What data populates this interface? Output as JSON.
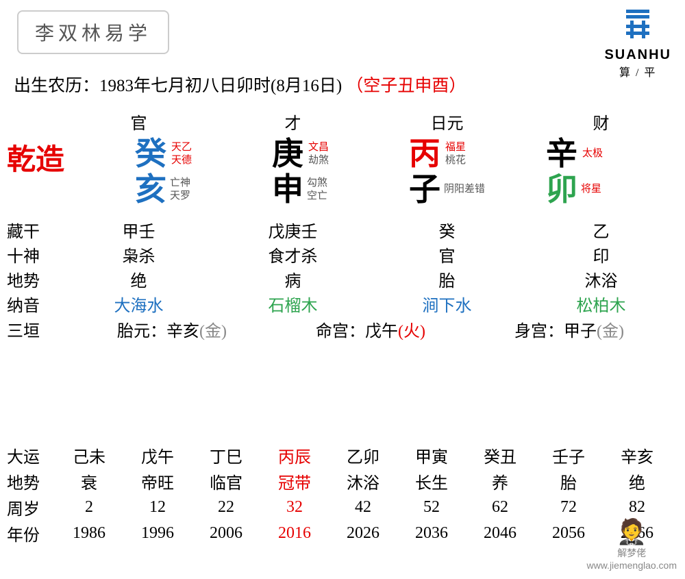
{
  "header": {
    "title": "李双林易学"
  },
  "logo": {
    "brand": "SUANHU",
    "sub": "算 / 平"
  },
  "birth": {
    "prefix": "出生农历：",
    "main": "1983年七月初八日卯时(8月16日)",
    "void": "（空子丑申酉）"
  },
  "topLabels": {
    "year": "官",
    "month": "才",
    "day": "日元",
    "hour": "财"
  },
  "qianzao": "乾造",
  "pillars": {
    "year": {
      "stem": "癸",
      "stemColor": "#1e70c0",
      "stemTags": [
        {
          "text": "天乙",
          "color": "#e60000"
        },
        {
          "text": "天德",
          "color": "#e60000"
        }
      ],
      "branch": "亥",
      "branchColor": "#1e70c0",
      "branchTags": [
        {
          "text": "亡神",
          "color": "#555555"
        },
        {
          "text": "天罗",
          "color": "#555555"
        }
      ]
    },
    "month": {
      "stem": "庚",
      "stemColor": "#000000",
      "stemTags": [
        {
          "text": "文昌",
          "color": "#e60000"
        },
        {
          "text": "劫煞",
          "color": "#555555"
        }
      ],
      "branch": "申",
      "branchColor": "#000000",
      "branchTags": [
        {
          "text": "勾煞",
          "color": "#555555"
        },
        {
          "text": "空亡",
          "color": "#555555"
        }
      ]
    },
    "day": {
      "stem": "丙",
      "stemColor": "#e60000",
      "stemTags": [
        {
          "text": "福星",
          "color": "#e60000"
        },
        {
          "text": "桃花",
          "color": "#555555"
        }
      ],
      "branch": "子",
      "branchColor": "#000000",
      "branchTags": [
        {
          "text": "阴阳差错",
          "color": "#555555"
        }
      ]
    },
    "hour": {
      "stem": "辛",
      "stemColor": "#000000",
      "stemTags": [
        {
          "text": "太极",
          "color": "#e60000"
        }
      ],
      "branch": "卯",
      "branchColor": "#2ea44f",
      "branchTags": [
        {
          "text": "将星",
          "color": "#e60000"
        }
      ]
    }
  },
  "details": {
    "canggan": {
      "label": "藏干",
      "year": "甲壬",
      "month": "戊庚壬",
      "day": "癸",
      "hour": "乙"
    },
    "shishen": {
      "label": "十神",
      "year": "枭杀",
      "month": "食才杀",
      "day": "官",
      "hour": "印"
    },
    "dishi": {
      "label": "地势",
      "year": "绝",
      "month": "病",
      "day": "胎",
      "hour": "沐浴"
    },
    "nayin": {
      "label": "纳音",
      "year": {
        "text": "大海水",
        "color": "#1e70c0"
      },
      "month": {
        "text": "石榴木",
        "color": "#2ea44f"
      },
      "day": {
        "text": "涧下水",
        "color": "#1e70c0"
      },
      "hour": {
        "text": "松柏木",
        "color": "#2ea44f"
      }
    }
  },
  "sanyuan": {
    "label": "三垣",
    "taiyuan": {
      "label": "胎元：",
      "value": "辛亥",
      "elem": "(金)",
      "elemColor": "#888888"
    },
    "minggong": {
      "label": "命宫：",
      "value": "戊午",
      "elem": "(火)",
      "elemColor": "#e60000"
    },
    "shengong": {
      "label": "身宫：",
      "value": "甲子",
      "elem": "(金)",
      "elemColor": "#888888"
    }
  },
  "luck": {
    "labels": {
      "dayun": "大运",
      "dishi": "地势",
      "zhousui": "周岁",
      "nianfen": "年份"
    },
    "highlight_index": 3,
    "highlight_color": "#e60000",
    "items": [
      {
        "gz": "己未",
        "ds": "衰",
        "age": "2",
        "year": "1986"
      },
      {
        "gz": "戊午",
        "ds": "帝旺",
        "age": "12",
        "year": "1996"
      },
      {
        "gz": "丁巳",
        "ds": "临官",
        "age": "22",
        "year": "2006"
      },
      {
        "gz": "丙辰",
        "ds": "冠带",
        "age": "32",
        "year": "2016"
      },
      {
        "gz": "乙卯",
        "ds": "沐浴",
        "age": "42",
        "year": "2026"
      },
      {
        "gz": "甲寅",
        "ds": "长生",
        "age": "52",
        "year": "2036"
      },
      {
        "gz": "癸丑",
        "ds": "养",
        "age": "62",
        "year": "2046"
      },
      {
        "gz": "壬子",
        "ds": "胎",
        "age": "72",
        "year": "2056"
      },
      {
        "gz": "辛亥",
        "ds": "绝",
        "age": "82",
        "year": "2066"
      }
    ]
  },
  "watermark": {
    "text": "解梦佬",
    "url": "www.jiemenglao.com"
  }
}
